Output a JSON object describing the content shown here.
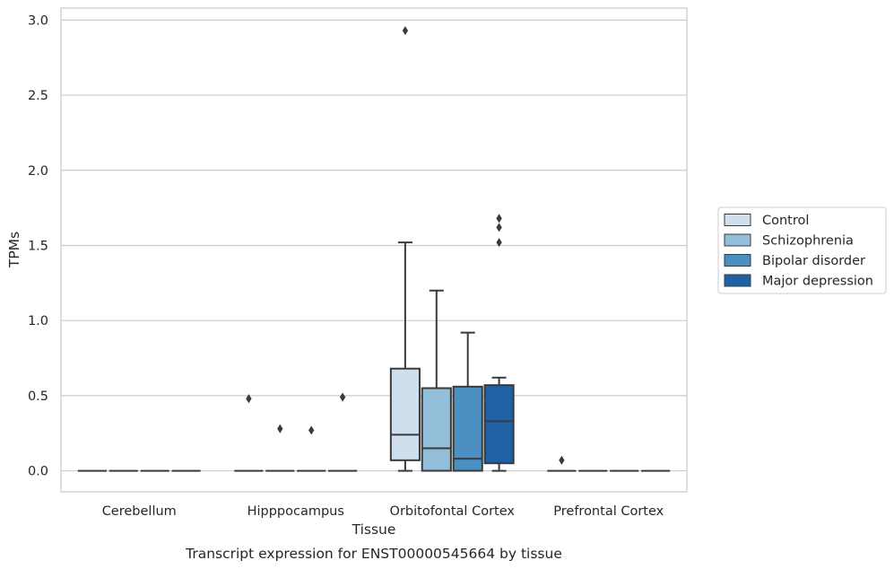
{
  "chart_data": {
    "type": "box",
    "title": "",
    "caption": "Transcript expression for ENST00000545664 by tissue",
    "xlabel": "Tissue",
    "ylabel": "TPMs",
    "ylim": [
      -0.14,
      3.08
    ],
    "yticks": [
      "0.0",
      "0.5",
      "1.0",
      "1.5",
      "2.0",
      "2.5",
      "3.0"
    ],
    "ytick_values": [
      0.0,
      0.5,
      1.0,
      1.5,
      2.0,
      2.5,
      3.0
    ],
    "grid": "horizontal",
    "legend_position": "right",
    "categories": [
      "Cerebellum",
      "Hipppocampus",
      "Orbitofontal Cortex",
      "Prefrontal Cortex"
    ],
    "series": [
      {
        "name": "Control",
        "color": "#cfdfee",
        "boxes": [
          {
            "min": 0,
            "q1": 0,
            "median": 0,
            "q3": 0,
            "max": 0,
            "outliers": []
          },
          {
            "min": 0,
            "q1": 0,
            "median": 0,
            "q3": 0,
            "max": 0,
            "outliers": [
              0.48
            ]
          },
          {
            "min": 0,
            "q1": 0.07,
            "median": 0.24,
            "q3": 0.68,
            "max": 1.52,
            "outliers": [
              2.93
            ]
          },
          {
            "min": 0,
            "q1": 0,
            "median": 0,
            "q3": 0,
            "max": 0,
            "outliers": [
              0.07
            ]
          }
        ]
      },
      {
        "name": "Schizophrenia",
        "color": "#93bfdb",
        "boxes": [
          {
            "min": 0,
            "q1": 0,
            "median": 0,
            "q3": 0,
            "max": 0,
            "outliers": []
          },
          {
            "min": 0,
            "q1": 0,
            "median": 0,
            "q3": 0,
            "max": 0,
            "outliers": [
              0.28
            ]
          },
          {
            "min": 0,
            "q1": 0,
            "median": 0.15,
            "q3": 0.55,
            "max": 1.2,
            "outliers": []
          },
          {
            "min": 0,
            "q1": 0,
            "median": 0,
            "q3": 0,
            "max": 0,
            "outliers": []
          }
        ]
      },
      {
        "name": "Bipolar disorder",
        "color": "#4a90c3",
        "boxes": [
          {
            "min": 0,
            "q1": 0,
            "median": 0,
            "q3": 0,
            "max": 0,
            "outliers": []
          },
          {
            "min": 0,
            "q1": 0,
            "median": 0,
            "q3": 0,
            "max": 0,
            "outliers": [
              0.27
            ]
          },
          {
            "min": 0,
            "q1": 0,
            "median": 0.08,
            "q3": 0.56,
            "max": 0.92,
            "outliers": []
          },
          {
            "min": 0,
            "q1": 0,
            "median": 0,
            "q3": 0,
            "max": 0,
            "outliers": []
          }
        ]
      },
      {
        "name": "Major depression",
        "color": "#1f61a5",
        "boxes": [
          {
            "min": 0,
            "q1": 0,
            "median": 0,
            "q3": 0,
            "max": 0,
            "outliers": []
          },
          {
            "min": 0,
            "q1": 0,
            "median": 0,
            "q3": 0,
            "max": 0,
            "outliers": [
              0.49
            ]
          },
          {
            "min": 0,
            "q1": 0.05,
            "median": 0.33,
            "q3": 0.57,
            "max": 0.62,
            "outliers": [
              1.52,
              1.62,
              1.68
            ]
          },
          {
            "min": 0,
            "q1": 0,
            "median": 0,
            "q3": 0,
            "max": 0,
            "outliers": []
          }
        ]
      }
    ]
  }
}
